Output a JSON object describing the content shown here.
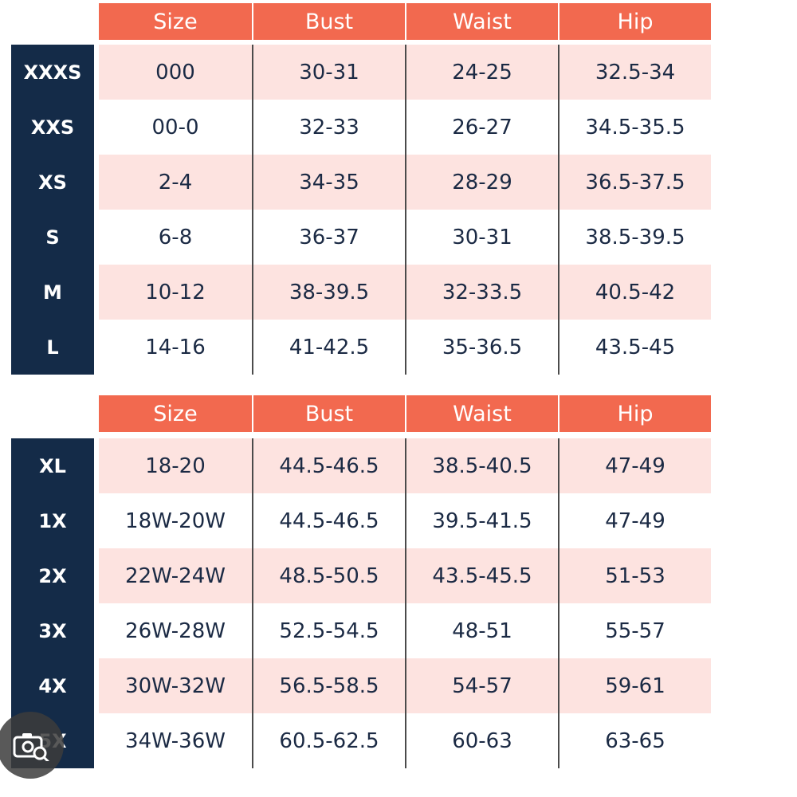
{
  "colors": {
    "header": "#f2694f",
    "label_column": "#142b48",
    "shade_row": "#fde3e0",
    "text": "#1b2a44"
  },
  "table1": {
    "headers": [
      "Size",
      "Bust",
      "Waist",
      "Hip"
    ],
    "rows": [
      {
        "label": "XXXS",
        "cells": [
          "000",
          "30-31",
          "24-25",
          "32.5-34"
        ]
      },
      {
        "label": "XXS",
        "cells": [
          "00-0",
          "32-33",
          "26-27",
          "34.5-35.5"
        ]
      },
      {
        "label": "XS",
        "cells": [
          "2-4",
          "34-35",
          "28-29",
          "36.5-37.5"
        ]
      },
      {
        "label": "S",
        "cells": [
          "6-8",
          "36-37",
          "30-31",
          "38.5-39.5"
        ]
      },
      {
        "label": "M",
        "cells": [
          "10-12",
          "38-39.5",
          "32-33.5",
          "40.5-42"
        ]
      },
      {
        "label": "L",
        "cells": [
          "14-16",
          "41-42.5",
          "35-36.5",
          "43.5-45"
        ]
      }
    ]
  },
  "table2": {
    "headers": [
      "Size",
      "Bust",
      "Waist",
      "Hip"
    ],
    "rows": [
      {
        "label": "XL",
        "cells": [
          "18-20",
          "44.5-46.5",
          "38.5-40.5",
          "47-49"
        ]
      },
      {
        "label": "1X",
        "cells": [
          "18W-20W",
          "44.5-46.5",
          "39.5-41.5",
          "47-49"
        ]
      },
      {
        "label": "2X",
        "cells": [
          "22W-24W",
          "48.5-50.5",
          "43.5-45.5",
          "51-53"
        ]
      },
      {
        "label": "3X",
        "cells": [
          "26W-28W",
          "52.5-54.5",
          "48-51",
          "55-57"
        ]
      },
      {
        "label": "4X",
        "cells": [
          "30W-32W",
          "56.5-58.5",
          "54-57",
          "59-61"
        ]
      },
      {
        "label": "5X",
        "cells": [
          "34W-36W",
          "60.5-62.5",
          "60-63",
          "63-65"
        ]
      }
    ]
  },
  "overlay": {
    "icon": "camera-search-icon"
  }
}
